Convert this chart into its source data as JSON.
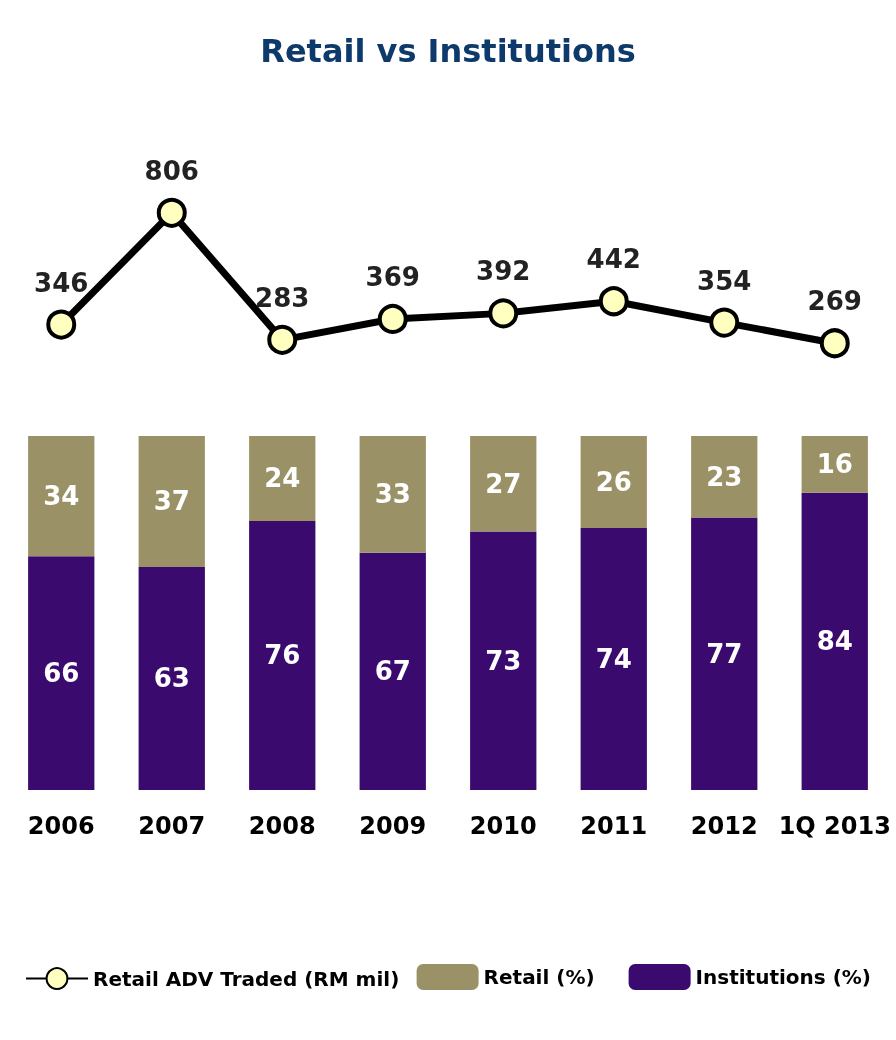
{
  "chart_data": [
    {
      "type": "line",
      "title": "Retail vs Institutions",
      "categories": [
        null,
        null,
        null,
        null,
        null,
        null,
        null,
        null
      ],
      "data_labels": true,
      "legend": "bottom left",
      "marker": "circle",
      "tick_labels": false,
      "series": [
        {
          "name": "Retail ADV Traded (RM mil)",
          "color": "#000000",
          "values": [
            346,
            806,
            283,
            369,
            392,
            442,
            354,
            269
          ]
        }
      ]
    },
    {
      "type": "bar",
      "categories": [
        "2006",
        "2007",
        "2008",
        "2009",
        "2010",
        "2011",
        "2012",
        "1Q 2013"
      ],
      "stacked": true,
      "data_labels": true,
      "legend": "bottom right",
      "tick_labels": "x",
      "series": [
        {
          "name": "Institutions (%)",
          "color": "#3b0a6e",
          "values": [
            66,
            63,
            76,
            67,
            73,
            74,
            77,
            84
          ]
        },
        {
          "name": "Retail (%)",
          "color": "#9a9266",
          "values": [
            34,
            37,
            24,
            33,
            27,
            26,
            23,
            16
          ]
        }
      ]
    }
  ]
}
